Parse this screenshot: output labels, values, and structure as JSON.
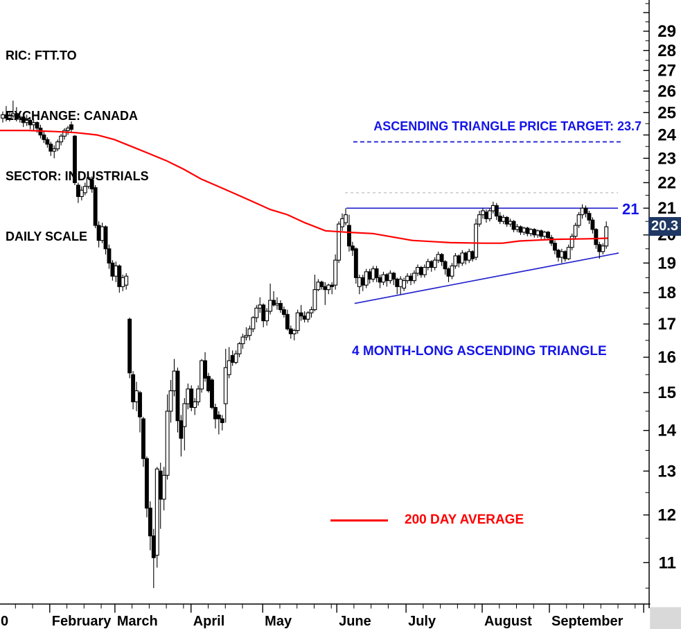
{
  "header": {
    "ric": "RIC: FTT.TO",
    "exchange": "EXCHANGE: CANADA",
    "sector": "SECTOR: INDUSTRIALS",
    "scale": "DAILY SCALE"
  },
  "annotations": {
    "target_text": "ASCENDING TRIANGLE PRICE TARGET: 23.7",
    "triangle_text": "4 MONTH-LONG ASCENDING TRIANGLE",
    "resistance_label": "21",
    "last_price_tag": "20.3",
    "legend_label": "200 DAY AVERAGE"
  },
  "colors": {
    "annotation_blue": "#1414E8",
    "line_blue": "#2323CD",
    "dashed_blue": "#2020D8",
    "red": "#FE0000",
    "tag_bg": "#1F3864",
    "tag_text": "#FFFFFF",
    "gray_dash": "#C3C3C3",
    "axis_black": "#000000",
    "corner_gray": "#D9D9D9"
  },
  "chart_data": {
    "type": "candlestick",
    "symbol": "FTT.TO",
    "timeframe": "daily",
    "yscale": "log",
    "ylim": [
      10.2,
      30.7
    ],
    "y_axis_labels": [
      29,
      28,
      27,
      26,
      25,
      24,
      23,
      22,
      21,
      20,
      19,
      18,
      17,
      16,
      15,
      14,
      13,
      12,
      11
    ],
    "x_axis": {
      "month_boundary_days": [
        13.7,
        32.7,
        54.9,
        75.8,
        97.4,
        117.6,
        139.8,
        159.4,
        186.9
      ],
      "labels": [
        {
          "text": "0",
          "day": -0.6
        },
        {
          "text": "February",
          "day": 14.3
        },
        {
          "text": "March",
          "day": 33.3
        },
        {
          "text": "April",
          "day": 55.5
        },
        {
          "text": "May",
          "day": 76.4
        },
        {
          "text": "June",
          "day": 98
        },
        {
          "text": "July",
          "day": 118.2
        },
        {
          "text": "August",
          "day": 140.4
        },
        {
          "text": "September",
          "day": 160
        }
      ]
    },
    "candles": [
      [
        24.75,
        25.05,
        24.55,
        24.9
      ],
      [
        24.9,
        25.3,
        24.6,
        24.75
      ],
      [
        24.75,
        25.0,
        24.6,
        24.85
      ],
      [
        24.85,
        25.55,
        24.75,
        24.95
      ],
      [
        24.95,
        25.25,
        24.6,
        24.7
      ],
      [
        24.7,
        25.0,
        24.55,
        24.8
      ],
      [
        24.8,
        24.95,
        24.35,
        24.55
      ],
      [
        24.55,
        24.9,
        24.4,
        24.65
      ],
      [
        24.65,
        24.75,
        24.25,
        24.45
      ],
      [
        24.45,
        24.7,
        24.2,
        24.55
      ],
      [
        24.55,
        24.6,
        24.1,
        24.3
      ],
      [
        24.3,
        24.45,
        23.85,
        24.0
      ],
      [
        24.0,
        24.15,
        23.65,
        23.8
      ],
      [
        23.8,
        23.9,
        23.45,
        23.6
      ],
      [
        23.6,
        23.7,
        23.1,
        23.3
      ],
      [
        23.3,
        23.55,
        23.0,
        23.4
      ],
      [
        23.4,
        23.8,
        23.3,
        23.7
      ],
      [
        23.7,
        24.05,
        23.55,
        23.95
      ],
      [
        23.95,
        24.3,
        23.8,
        24.2
      ],
      [
        24.2,
        24.4,
        24.0,
        24.3
      ],
      [
        24.45,
        24.6,
        24.1,
        24.25
      ],
      [
        23.95,
        24.0,
        21.9,
        22.0
      ],
      [
        21.9,
        22.0,
        21.2,
        21.45
      ],
      [
        21.45,
        21.85,
        21.3,
        21.7
      ],
      [
        21.6,
        22.0,
        21.5,
        21.85
      ],
      [
        21.85,
        22.3,
        21.75,
        22.2
      ],
      [
        22.1,
        22.25,
        21.6,
        21.75
      ],
      [
        21.8,
        21.9,
        20.25,
        20.35
      ],
      [
        20.35,
        20.5,
        19.55,
        19.8
      ],
      [
        19.8,
        20.45,
        19.7,
        20.3
      ],
      [
        20.3,
        20.35,
        19.3,
        19.5
      ],
      [
        19.5,
        19.65,
        18.8,
        19.0
      ],
      [
        19.0,
        19.1,
        18.4,
        18.55
      ],
      [
        18.55,
        19.05,
        18.35,
        18.9
      ],
      [
        18.9,
        18.95,
        18.0,
        18.2
      ],
      [
        18.2,
        18.6,
        18.05,
        18.5
      ],
      [
        18.25,
        18.65,
        18.1,
        18.55
      ],
      [
        17.15,
        17.2,
        15.4,
        15.55
      ],
      [
        15.5,
        15.6,
        14.55,
        14.75
      ],
      [
        14.75,
        15.3,
        14.5,
        15.05
      ],
      [
        15.0,
        15.05,
        13.95,
        14.35
      ],
      [
        14.3,
        14.35,
        13.1,
        13.3
      ],
      [
        13.3,
        13.35,
        11.95,
        12.15
      ],
      [
        12.15,
        12.3,
        11.25,
        11.55
      ],
      [
        11.55,
        11.7,
        10.5,
        11.1
      ],
      [
        11.15,
        13.1,
        10.9,
        13.05
      ],
      [
        13.0,
        13.2,
        11.7,
        12.35
      ],
      [
        12.35,
        13.1,
        12.1,
        12.9
      ],
      [
        12.9,
        14.95,
        12.8,
        14.5
      ],
      [
        14.5,
        15.35,
        14.2,
        15.05
      ],
      [
        15.05,
        15.95,
        14.9,
        15.6
      ],
      [
        15.6,
        15.7,
        13.95,
        14.25
      ],
      [
        14.25,
        14.4,
        13.35,
        13.8
      ],
      [
        14.1,
        14.85,
        13.5,
        14.7
      ],
      [
        14.7,
        15.25,
        14.55,
        15.1
      ],
      [
        15.1,
        15.2,
        14.5,
        14.6
      ],
      [
        14.6,
        14.85,
        14.4,
        14.75
      ],
      [
        14.75,
        15.2,
        14.65,
        15.1
      ],
      [
        15.1,
        15.95,
        15.0,
        15.9
      ],
      [
        15.9,
        16.15,
        15.3,
        15.4
      ],
      [
        15.45,
        15.55,
        15.0,
        15.05
      ],
      [
        15.35,
        15.4,
        14.55,
        14.6
      ],
      [
        14.6,
        14.7,
        14.05,
        14.3
      ],
      [
        14.4,
        14.5,
        13.9,
        14.3
      ],
      [
        14.3,
        14.4,
        14.0,
        14.2
      ],
      [
        14.7,
        16.25,
        14.2,
        15.7
      ],
      [
        15.5,
        16.3,
        15.4,
        15.9
      ],
      [
        16.05,
        16.2,
        15.75,
        15.85
      ],
      [
        15.85,
        16.2,
        15.8,
        16.1
      ],
      [
        16.1,
        16.45,
        16.0,
        16.4
      ],
      [
        16.4,
        16.7,
        16.25,
        16.6
      ],
      [
        16.6,
        16.9,
        16.5,
        16.65
      ],
      [
        16.65,
        16.95,
        16.5,
        16.85
      ],
      [
        16.85,
        17.25,
        16.75,
        17.2
      ],
      [
        17.2,
        17.6,
        17.05,
        17.5
      ],
      [
        17.5,
        17.85,
        17.35,
        17.6
      ],
      [
        17.6,
        17.65,
        16.9,
        17.1
      ],
      [
        17.1,
        17.5,
        16.95,
        17.4
      ],
      [
        17.4,
        18.3,
        17.3,
        17.75
      ],
      [
        17.75,
        18.05,
        17.55,
        17.6
      ],
      [
        17.6,
        17.85,
        17.45,
        17.65
      ],
      [
        17.65,
        17.75,
        17.35,
        17.45
      ],
      [
        17.45,
        17.55,
        17.2,
        17.3
      ],
      [
        17.3,
        17.45,
        16.8,
        16.85
      ],
      [
        16.85,
        16.95,
        16.55,
        16.7
      ],
      [
        16.7,
        16.85,
        16.5,
        16.8
      ],
      [
        16.8,
        17.45,
        16.7,
        17.35
      ],
      [
        17.35,
        17.6,
        17.1,
        17.25
      ],
      [
        17.25,
        17.4,
        17.05,
        17.15
      ],
      [
        17.15,
        17.4,
        17.05,
        17.35
      ],
      [
        17.35,
        17.55,
        17.2,
        17.45
      ],
      [
        17.45,
        18.6,
        17.4,
        18.1
      ],
      [
        18.1,
        18.45,
        18.05,
        18.35
      ],
      [
        18.35,
        18.4,
        18.1,
        18.2
      ],
      [
        18.2,
        18.35,
        17.6,
        18.1
      ],
      [
        18.1,
        18.3,
        17.95,
        18.25
      ],
      [
        18.25,
        18.35,
        17.95,
        18.2
      ],
      [
        18.25,
        19.3,
        18.1,
        19.1
      ],
      [
        19.1,
        20.5,
        19.0,
        20.4
      ],
      [
        20.3,
        20.8,
        20.15,
        20.6
      ],
      [
        20.45,
        21.0,
        20.35,
        20.75
      ],
      [
        20.35,
        20.75,
        19.4,
        19.6
      ],
      [
        19.6,
        19.75,
        19.25,
        19.45
      ],
      [
        19.5,
        19.55,
        18.3,
        18.5
      ],
      [
        18.2,
        18.6,
        17.95,
        18.5
      ],
      [
        18.5,
        18.6,
        18.05,
        18.25
      ],
      [
        18.25,
        18.8,
        18.15,
        18.7
      ],
      [
        18.7,
        18.8,
        18.3,
        18.45
      ],
      [
        18.45,
        18.9,
        18.35,
        18.8
      ],
      [
        18.8,
        18.9,
        18.35,
        18.5
      ],
      [
        18.5,
        18.6,
        18.15,
        18.35
      ],
      [
        18.35,
        18.7,
        18.25,
        18.6
      ],
      [
        18.6,
        18.65,
        18.2,
        18.4
      ],
      [
        18.4,
        18.75,
        18.3,
        18.65
      ],
      [
        18.65,
        18.7,
        18.25,
        18.45
      ],
      [
        18.45,
        18.5,
        17.95,
        18.2
      ],
      [
        18.2,
        18.55,
        17.95,
        18.45
      ],
      [
        18.15,
        18.5,
        18.05,
        18.4
      ],
      [
        18.4,
        18.65,
        18.3,
        18.55
      ],
      [
        18.55,
        18.65,
        18.25,
        18.4
      ],
      [
        18.4,
        18.75,
        18.3,
        18.65
      ],
      [
        18.65,
        18.95,
        18.55,
        18.85
      ],
      [
        18.85,
        18.9,
        18.5,
        18.6
      ],
      [
        18.6,
        18.95,
        18.5,
        18.85
      ],
      [
        18.85,
        19.15,
        18.75,
        19.05
      ],
      [
        19.05,
        19.1,
        18.7,
        18.85
      ],
      [
        18.85,
        19.2,
        18.75,
        19.1
      ],
      [
        19.1,
        19.4,
        19.0,
        19.3
      ],
      [
        19.3,
        19.35,
        18.9,
        19.05
      ],
      [
        19.05,
        19.1,
        18.6,
        18.8
      ],
      [
        18.8,
        18.85,
        18.35,
        18.55
      ],
      [
        18.55,
        19.0,
        18.45,
        18.9
      ],
      [
        18.9,
        19.35,
        18.8,
        19.25
      ],
      [
        19.25,
        19.3,
        18.85,
        19.0
      ],
      [
        19.0,
        19.45,
        18.9,
        19.35
      ],
      [
        19.35,
        19.4,
        18.95,
        19.1
      ],
      [
        19.1,
        19.5,
        19.0,
        19.4
      ],
      [
        19.4,
        19.45,
        19.05,
        19.15
      ],
      [
        19.2,
        20.6,
        19.1,
        20.4
      ],
      [
        20.4,
        20.9,
        20.3,
        20.75
      ],
      [
        20.75,
        21.0,
        20.6,
        20.9
      ],
      [
        20.85,
        20.95,
        20.45,
        20.6
      ],
      [
        20.6,
        21.0,
        20.5,
        20.9
      ],
      [
        20.9,
        21.25,
        20.8,
        21.1
      ],
      [
        21.1,
        21.2,
        20.55,
        20.7
      ],
      [
        20.7,
        20.85,
        20.4,
        20.5
      ],
      [
        20.5,
        20.75,
        20.4,
        20.65
      ],
      [
        20.65,
        20.7,
        20.3,
        20.4
      ],
      [
        20.4,
        20.6,
        20.3,
        20.5
      ],
      [
        20.5,
        20.55,
        20.1,
        20.2
      ],
      [
        20.2,
        20.4,
        20.1,
        20.3
      ],
      [
        20.3,
        20.35,
        20.0,
        20.1
      ],
      [
        20.1,
        20.3,
        20.0,
        20.25
      ],
      [
        20.25,
        20.3,
        19.95,
        20.05
      ],
      [
        20.05,
        20.25,
        19.95,
        20.2
      ],
      [
        20.2,
        20.25,
        19.9,
        20.0
      ],
      [
        20.0,
        20.2,
        19.9,
        20.15
      ],
      [
        20.15,
        20.2,
        19.85,
        19.95
      ],
      [
        19.95,
        20.15,
        19.85,
        20.1
      ],
      [
        20.1,
        20.15,
        19.8,
        19.9
      ],
      [
        19.9,
        20.0,
        19.6,
        19.7
      ],
      [
        19.7,
        19.8,
        19.3,
        19.45
      ],
      [
        19.45,
        19.5,
        19.05,
        19.2
      ],
      [
        19.2,
        19.5,
        19.0,
        19.4
      ],
      [
        19.4,
        19.45,
        19.05,
        19.15
      ],
      [
        19.15,
        19.65,
        19.1,
        19.55
      ],
      [
        19.55,
        20.05,
        19.45,
        19.95
      ],
      [
        19.95,
        20.45,
        19.85,
        20.35
      ],
      [
        20.35,
        20.85,
        20.25,
        20.75
      ],
      [
        20.75,
        21.15,
        20.6,
        21.0
      ],
      [
        21.0,
        21.1,
        20.65,
        20.8
      ],
      [
        20.8,
        20.9,
        20.4,
        20.55
      ],
      [
        20.55,
        20.65,
        20.05,
        20.2
      ],
      [
        20.2,
        20.25,
        19.5,
        19.65
      ],
      [
        19.65,
        19.75,
        19.15,
        19.4
      ],
      [
        19.4,
        19.7,
        19.3,
        19.6
      ],
      [
        19.6,
        20.5,
        19.5,
        20.3
      ]
    ],
    "ma200": {
      "label": "200 DAY AVERAGE",
      "points": [
        [
          -0.8,
          24.2
        ],
        [
          7.3,
          24.2
        ],
        [
          15.4,
          24.15
        ],
        [
          21.4,
          24.1
        ],
        [
          27.5,
          24.0
        ],
        [
          32.5,
          23.8
        ],
        [
          37.6,
          23.5
        ],
        [
          42.6,
          23.2
        ],
        [
          47.7,
          22.9
        ],
        [
          52.7,
          22.55
        ],
        [
          57.8,
          22.15
        ],
        [
          62.8,
          21.85
        ],
        [
          67.9,
          21.55
        ],
        [
          72.9,
          21.25
        ],
        [
          78,
          20.95
        ],
        [
          83,
          20.75
        ],
        [
          88.1,
          20.45
        ],
        [
          94.1,
          20.15
        ],
        [
          100.2,
          20.1
        ],
        [
          108,
          20.05
        ],
        [
          119.4,
          19.8
        ],
        [
          130.5,
          19.72
        ],
        [
          140.6,
          19.7
        ],
        [
          145.7,
          19.7
        ],
        [
          150.7,
          19.78
        ],
        [
          160.8,
          19.84
        ],
        [
          170.9,
          19.86
        ],
        [
          176.4,
          19.88
        ]
      ]
    },
    "overlays": {
      "resistance_line": {
        "level": 21,
        "day_start": 100.2,
        "day_end": 179.4,
        "label": "21"
      },
      "support_trendline": {
        "day_start": 102.6,
        "price_start": 17.65,
        "day_end": 179.6,
        "price_end": 19.35
      },
      "target_line": {
        "level": 23.7,
        "day_start": 102.2,
        "day_end": 180.4,
        "style": "dashed"
      },
      "minor_gray_line": {
        "level": 21.6,
        "day_start": 99.8,
        "day_end": 179.4,
        "style": "dashed"
      }
    },
    "last_price": 20.3
  }
}
